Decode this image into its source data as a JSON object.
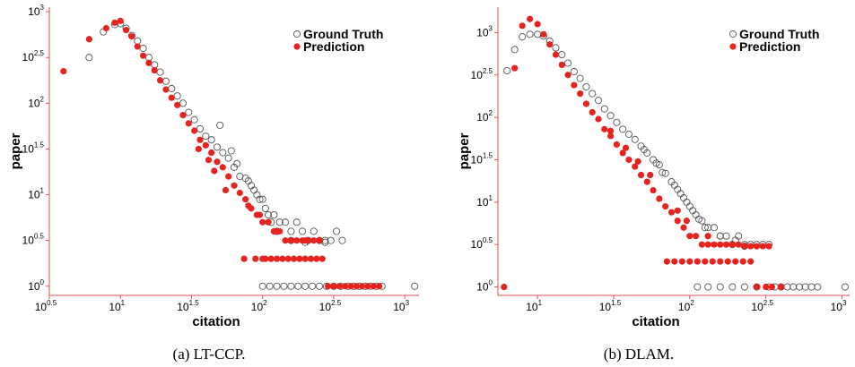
{
  "figure": {
    "captions": [
      "(a) LT-CCP.",
      "(b) DLAM."
    ]
  },
  "chart_data": [
    {
      "type": "scatter",
      "panel": "a",
      "xlabel": "citation",
      "ylabel": "paper",
      "x_scale": "log10",
      "y_scale": "log10",
      "xlim_log10": [
        0.5,
        3.1
      ],
      "ylim_log10": [
        -0.1,
        3.05
      ],
      "x_ticks": [
        {
          "base": "10",
          "exp": "0.5"
        },
        {
          "base": "10",
          "exp": "1"
        },
        {
          "base": "10",
          "exp": "1.5"
        },
        {
          "base": "10",
          "exp": "2"
        },
        {
          "base": "10",
          "exp": "2.5"
        },
        {
          "base": "10",
          "exp": "3"
        }
      ],
      "y_ticks": [
        {
          "base": "10",
          "exp": "0"
        },
        {
          "base": "10",
          "exp": "0.5"
        },
        {
          "base": "10",
          "exp": "1"
        },
        {
          "base": "10",
          "exp": "1.5"
        },
        {
          "base": "10",
          "exp": "2"
        },
        {
          "base": "10",
          "exp": "2.5"
        },
        {
          "base": "10",
          "exp": "3"
        }
      ],
      "legend": {
        "placement": "top-right"
      },
      "grid": false,
      "series": [
        {
          "name": "Ground Truth",
          "marker": "open-circle",
          "color": "#555555",
          "x_log10": [
            0.78,
            0.88,
            0.96,
            1.0,
            1.04,
            1.08,
            1.12,
            1.16,
            1.2,
            1.24,
            1.28,
            1.32,
            1.36,
            1.4,
            1.44,
            1.48,
            1.52,
            1.56,
            1.6,
            1.64,
            1.68,
            1.72,
            1.76,
            1.8,
            1.84,
            1.88,
            1.92,
            1.96,
            2.0,
            2.04,
            2.08,
            2.12,
            2.16,
            2.2,
            2.24,
            2.28,
            2.32,
            2.36,
            2.4,
            2.44,
            2.48,
            2.52,
            2.56,
            2.6,
            2.64,
            2.68,
            2.72,
            2.76,
            2.8,
            2.84,
            3.07,
            1.7,
            1.78,
            1.82,
            1.9,
            1.94,
            1.98,
            2.02,
            2.06,
            2.1,
            2.2,
            2.3,
            2.44,
            2.0,
            2.05,
            2.1,
            2.15,
            2.2,
            2.25,
            2.3,
            2.35,
            2.4,
            2.45,
            2.5,
            2.55
          ],
          "y_log10": [
            2.5,
            2.78,
            2.86,
            2.87,
            2.82,
            2.74,
            2.68,
            2.6,
            2.5,
            2.42,
            2.34,
            2.24,
            2.16,
            2.08,
            2.0,
            1.9,
            1.82,
            1.72,
            1.64,
            1.6,
            1.52,
            1.46,
            1.4,
            1.3,
            1.2,
            1.18,
            1.1,
            1.0,
            0.95,
            0.78,
            0.78,
            0.7,
            0.7,
            0.6,
            0.7,
            0.6,
            0.5,
            0.6,
            0.5,
            0.5,
            0.5,
            0.6,
            0.5,
            0.0,
            0.0,
            0.0,
            0.0,
            0.0,
            0.0,
            0.0,
            0.0,
            1.76,
            1.48,
            1.34,
            1.15,
            1.05,
            0.95,
            0.85,
            0.7,
            0.6,
            0.5,
            0.48,
            0.48,
            0.0,
            0.0,
            0.0,
            0.0,
            0.0,
            0.0,
            0.0,
            0.0,
            0.0,
            0.0,
            0.0,
            0.0
          ]
        },
        {
          "name": "Prediction",
          "marker": "filled-circle",
          "color": "#e52420",
          "x_log10": [
            0.6,
            0.78,
            0.9,
            0.96,
            1.0,
            1.04,
            1.08,
            1.12,
            1.16,
            1.2,
            1.24,
            1.28,
            1.32,
            1.36,
            1.4,
            1.44,
            1.48,
            1.52,
            1.56,
            1.6,
            1.64,
            1.68,
            1.72,
            1.76,
            1.8,
            1.84,
            1.88,
            1.92,
            1.96,
            2.0,
            2.04,
            2.08,
            2.12,
            2.16,
            2.2,
            2.24,
            2.28,
            2.32,
            2.36,
            2.4,
            1.87,
            1.95,
            2.0,
            2.02,
            2.06,
            2.1,
            2.14,
            2.18,
            2.22,
            2.26,
            2.3,
            2.34,
            2.38,
            2.42,
            2.46,
            2.5,
            2.54,
            2.58,
            2.62,
            2.66,
            2.7,
            2.74,
            2.78,
            2.82,
            1.55,
            1.62,
            1.66,
            1.74,
            1.9,
            1.98,
            2.1,
            2.2,
            2.3
          ],
          "y_log10": [
            2.35,
            2.7,
            2.82,
            2.88,
            2.9,
            2.8,
            2.73,
            2.62,
            2.52,
            2.44,
            2.36,
            2.25,
            2.15,
            2.06,
            1.98,
            1.87,
            1.78,
            1.7,
            1.6,
            1.54,
            1.46,
            1.36,
            1.3,
            1.2,
            1.1,
            1.02,
            0.95,
            0.85,
            0.78,
            0.7,
            0.7,
            0.6,
            0.6,
            0.5,
            0.5,
            0.5,
            0.5,
            0.5,
            0.5,
            0.5,
            0.3,
            0.3,
            0.3,
            0.3,
            0.3,
            0.3,
            0.3,
            0.3,
            0.3,
            0.3,
            0.3,
            0.3,
            0.3,
            0.3,
            0.0,
            0.0,
            0.0,
            0.0,
            0.0,
            0.0,
            0.0,
            0.0,
            0.0,
            0.0,
            1.5,
            1.38,
            1.26,
            1.05,
            0.88,
            0.78,
            0.6,
            0.5,
            0.5
          ]
        }
      ]
    },
    {
      "type": "scatter",
      "panel": "b",
      "xlabel": "citation",
      "ylabel": "paper",
      "x_scale": "log10",
      "y_scale": "log10",
      "xlim_log10": [
        0.74,
        3.05
      ],
      "ylim_log10": [
        -0.1,
        3.3
      ],
      "x_ticks": [
        {
          "base": "10",
          "exp": "1"
        },
        {
          "base": "10",
          "exp": "1.5"
        },
        {
          "base": "10",
          "exp": "2"
        },
        {
          "base": "10",
          "exp": "2.5"
        },
        {
          "base": "10",
          "exp": "3"
        }
      ],
      "y_ticks": [
        {
          "base": "10",
          "exp": "0"
        },
        {
          "base": "10",
          "exp": "0.5"
        },
        {
          "base": "10",
          "exp": "1"
        },
        {
          "base": "10",
          "exp": "1.5"
        },
        {
          "base": "10",
          "exp": "2"
        },
        {
          "base": "10",
          "exp": "2.5"
        },
        {
          "base": "10",
          "exp": "3"
        }
      ],
      "legend": {
        "placement": "top-right"
      },
      "grid": false,
      "series": [
        {
          "name": "Ground Truth",
          "marker": "open-circle",
          "color": "#555555",
          "x_log10": [
            0.8,
            0.85,
            0.9,
            0.95,
            1.0,
            1.04,
            1.08,
            1.12,
            1.16,
            1.2,
            1.24,
            1.28,
            1.32,
            1.36,
            1.4,
            1.44,
            1.48,
            1.52,
            1.56,
            1.6,
            1.64,
            1.68,
            1.72,
            1.76,
            1.8,
            1.84,
            1.88,
            1.92,
            1.96,
            2.0,
            2.04,
            2.08,
            2.12,
            2.16,
            2.2,
            2.24,
            2.28,
            2.32,
            2.36,
            2.4,
            2.44,
            2.48,
            2.52,
            2.56,
            2.6,
            2.64,
            2.68,
            2.72,
            2.76,
            2.8,
            2.84,
            3.02,
            1.7,
            1.78,
            1.82,
            1.9,
            1.94,
            1.98,
            2.02,
            2.06,
            2.1,
            2.2,
            2.3,
            2.36,
            2.05,
            2.12,
            2.2,
            2.28,
            2.36,
            2.44,
            2.52
          ],
          "y_log10": [
            2.55,
            2.8,
            2.95,
            2.98,
            2.98,
            2.96,
            2.9,
            2.82,
            2.74,
            2.64,
            2.54,
            2.46,
            2.36,
            2.28,
            2.2,
            2.1,
            2.02,
            1.94,
            1.86,
            1.8,
            1.74,
            1.66,
            1.58,
            1.5,
            1.44,
            1.34,
            1.24,
            1.15,
            1.05,
            0.95,
            0.85,
            0.78,
            0.7,
            0.7,
            0.6,
            0.6,
            0.5,
            0.6,
            0.5,
            0.5,
            0.5,
            0.5,
            0.5,
            0.0,
            0.0,
            0.0,
            0.0,
            0.0,
            0.0,
            0.0,
            0.0,
            0.0,
            1.62,
            1.46,
            1.35,
            1.2,
            1.1,
            1.0,
            0.9,
            0.8,
            0.7,
            0.6,
            0.55,
            0.48,
            0.0,
            0.0,
            0.0,
            0.0,
            0.0,
            0.0,
            0.0
          ]
        },
        {
          "name": "Prediction",
          "marker": "filled-circle",
          "color": "#e52420",
          "x_log10": [
            0.78,
            0.85,
            0.9,
            0.95,
            1.0,
            1.04,
            1.08,
            1.12,
            1.16,
            1.2,
            1.24,
            1.28,
            1.32,
            1.36,
            1.4,
            1.44,
            1.48,
            1.52,
            1.56,
            1.6,
            1.64,
            1.68,
            1.72,
            1.76,
            1.8,
            1.84,
            1.88,
            1.92,
            1.96,
            2.0,
            2.04,
            2.08,
            2.12,
            2.16,
            2.2,
            2.24,
            2.28,
            2.32,
            2.36,
            2.4,
            2.44,
            2.48,
            2.52,
            1.85,
            1.9,
            1.95,
            2.0,
            2.05,
            2.1,
            2.15,
            2.2,
            2.25,
            2.3,
            2.35,
            2.4,
            2.44,
            2.5,
            2.54,
            2.6,
            1.48,
            1.58,
            1.66,
            1.74,
            1.92,
            1.98,
            2.12
          ],
          "y_log10": [
            0.0,
            2.58,
            3.08,
            3.16,
            3.1,
            2.98,
            2.86,
            2.74,
            2.62,
            2.5,
            2.38,
            2.28,
            2.16,
            2.06,
            1.98,
            1.86,
            1.78,
            1.68,
            1.58,
            1.5,
            1.42,
            1.32,
            1.24,
            1.14,
            1.04,
            0.95,
            0.88,
            0.78,
            0.7,
            0.6,
            0.6,
            0.5,
            0.5,
            0.5,
            0.5,
            0.5,
            0.5,
            0.5,
            0.48,
            0.48,
            0.48,
            0.48,
            0.48,
            0.3,
            0.3,
            0.3,
            0.3,
            0.3,
            0.3,
            0.3,
            0.3,
            0.3,
            0.3,
            0.3,
            0.3,
            0.0,
            0.0,
            0.0,
            0.0,
            1.84,
            1.64,
            1.48,
            1.32,
            0.9,
            0.78,
            0.6
          ]
        }
      ]
    }
  ]
}
